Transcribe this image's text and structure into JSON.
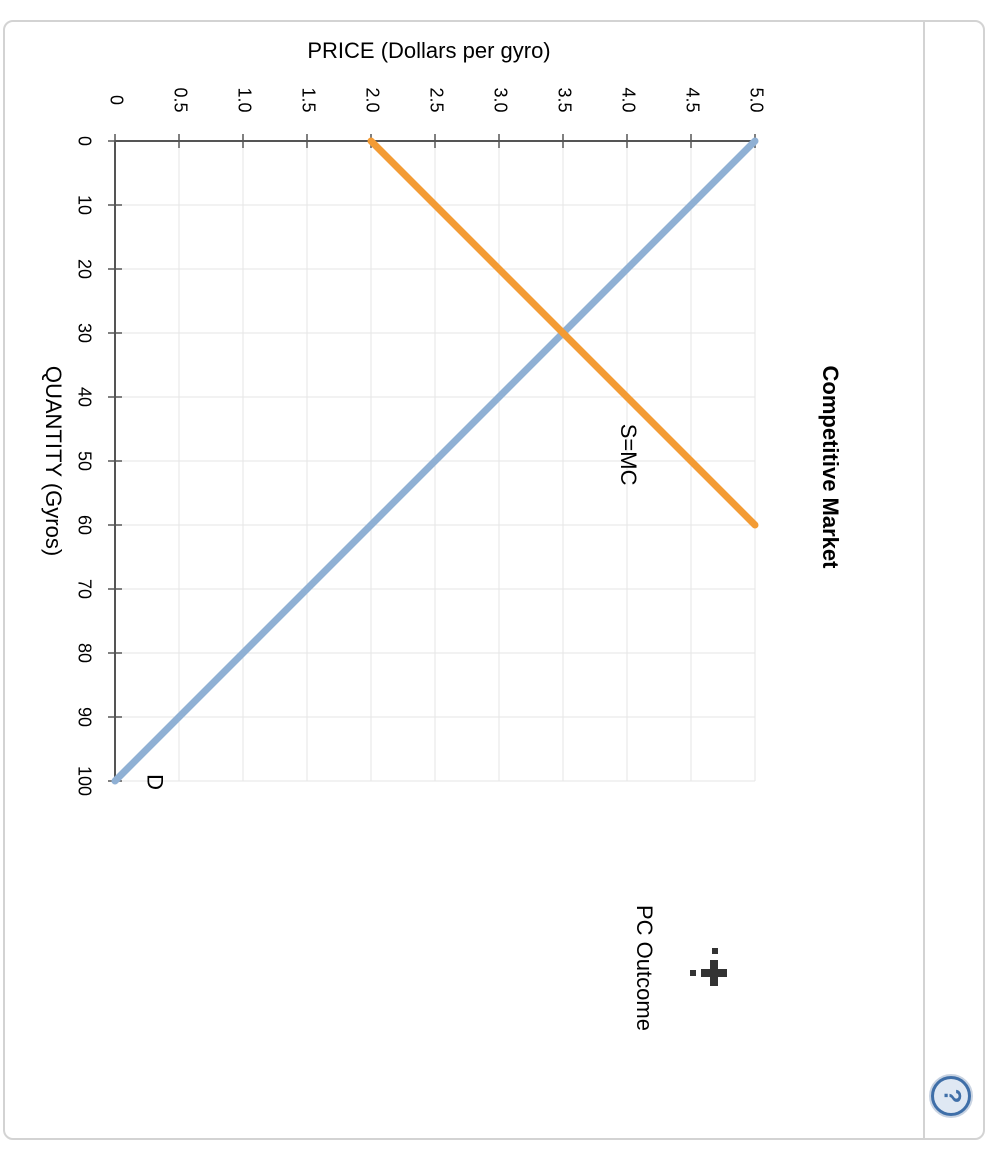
{
  "chart_data": {
    "type": "line",
    "title": "Competitive Market",
    "xlabel": "QUANTITY (Gyros)",
    "ylabel": "PRICE (Dollars per gyro)",
    "xlim": [
      0,
      100
    ],
    "ylim": [
      0,
      5
    ],
    "x_ticks": [
      0,
      10,
      20,
      30,
      40,
      50,
      60,
      70,
      80,
      90,
      100
    ],
    "y_ticks": [
      "0",
      "0.5",
      "1.0",
      "1.5",
      "2.0",
      "2.5",
      "3.0",
      "3.5",
      "4.0",
      "4.5",
      "5.0"
    ],
    "grid": true,
    "series": [
      {
        "name": "D",
        "color": "#8fb0d4",
        "points": [
          [
            0,
            5.0
          ],
          [
            100,
            0.0
          ]
        ]
      },
      {
        "name": "S=MC",
        "color": "#f39b34",
        "points": [
          [
            0,
            2.0
          ],
          [
            60,
            5.0
          ]
        ]
      }
    ]
  },
  "tool": {
    "label": "PC Outcome",
    "icon": "plus-marker-icon"
  },
  "help": {
    "glyph": "?",
    "icon": "help-icon"
  }
}
